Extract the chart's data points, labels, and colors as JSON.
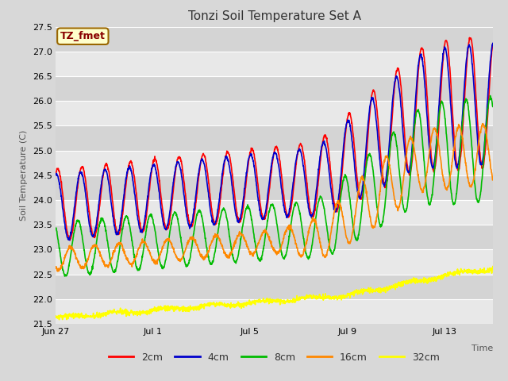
{
  "title": "Tonzi Soil Temperature Set A",
  "xlabel": "Time",
  "ylabel": "Soil Temperature (C)",
  "ylim": [
    21.5,
    27.5
  ],
  "yticks": [
    21.5,
    22.0,
    22.5,
    23.0,
    23.5,
    24.0,
    24.5,
    25.0,
    25.5,
    26.0,
    26.5,
    27.0,
    27.5
  ],
  "colors": {
    "2cm": "#ff0000",
    "4cm": "#0000cc",
    "8cm": "#00bb00",
    "16cm": "#ff8800",
    "32cm": "#ffff00"
  },
  "annotation_text": "TZ_fmet",
  "annotation_color": "#880000",
  "annotation_bg": "#ffffcc",
  "band_colors": [
    "#e8e8e8",
    "#d4d4d4"
  ],
  "n_days": 18,
  "x_ticks_labels": [
    "Jun 27",
    "Jul 1",
    "Jul 5",
    "Jul 9",
    "Jul 13"
  ],
  "x_ticks_positions": [
    0,
    4,
    8,
    12,
    16
  ],
  "figsize": [
    6.4,
    4.8
  ],
  "dpi": 100
}
